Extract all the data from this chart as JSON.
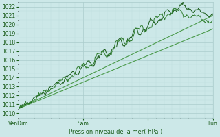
{
  "xlabel": "Pression niveau de la mer( hPa )",
  "ylim": [
    1009.5,
    1022.5
  ],
  "yticks": [
    1010,
    1011,
    1012,
    1013,
    1014,
    1015,
    1016,
    1017,
    1018,
    1019,
    1020,
    1021,
    1022
  ],
  "xtick_positions": [
    0.0,
    0.333,
    0.667,
    1.0
  ],
  "xtick_labels": [
    "VenDim",
    "Sam",
    "",
    "Lun"
  ],
  "bg_color": "#cce8e8",
  "grid_major_color": "#aacccc",
  "grid_minor_color": "#bbdddd",
  "line_color_dark": "#1a5c1a",
  "line_color_medium": "#2e7d2e",
  "line_color_light": "#4a9a4a",
  "n_points": 300
}
